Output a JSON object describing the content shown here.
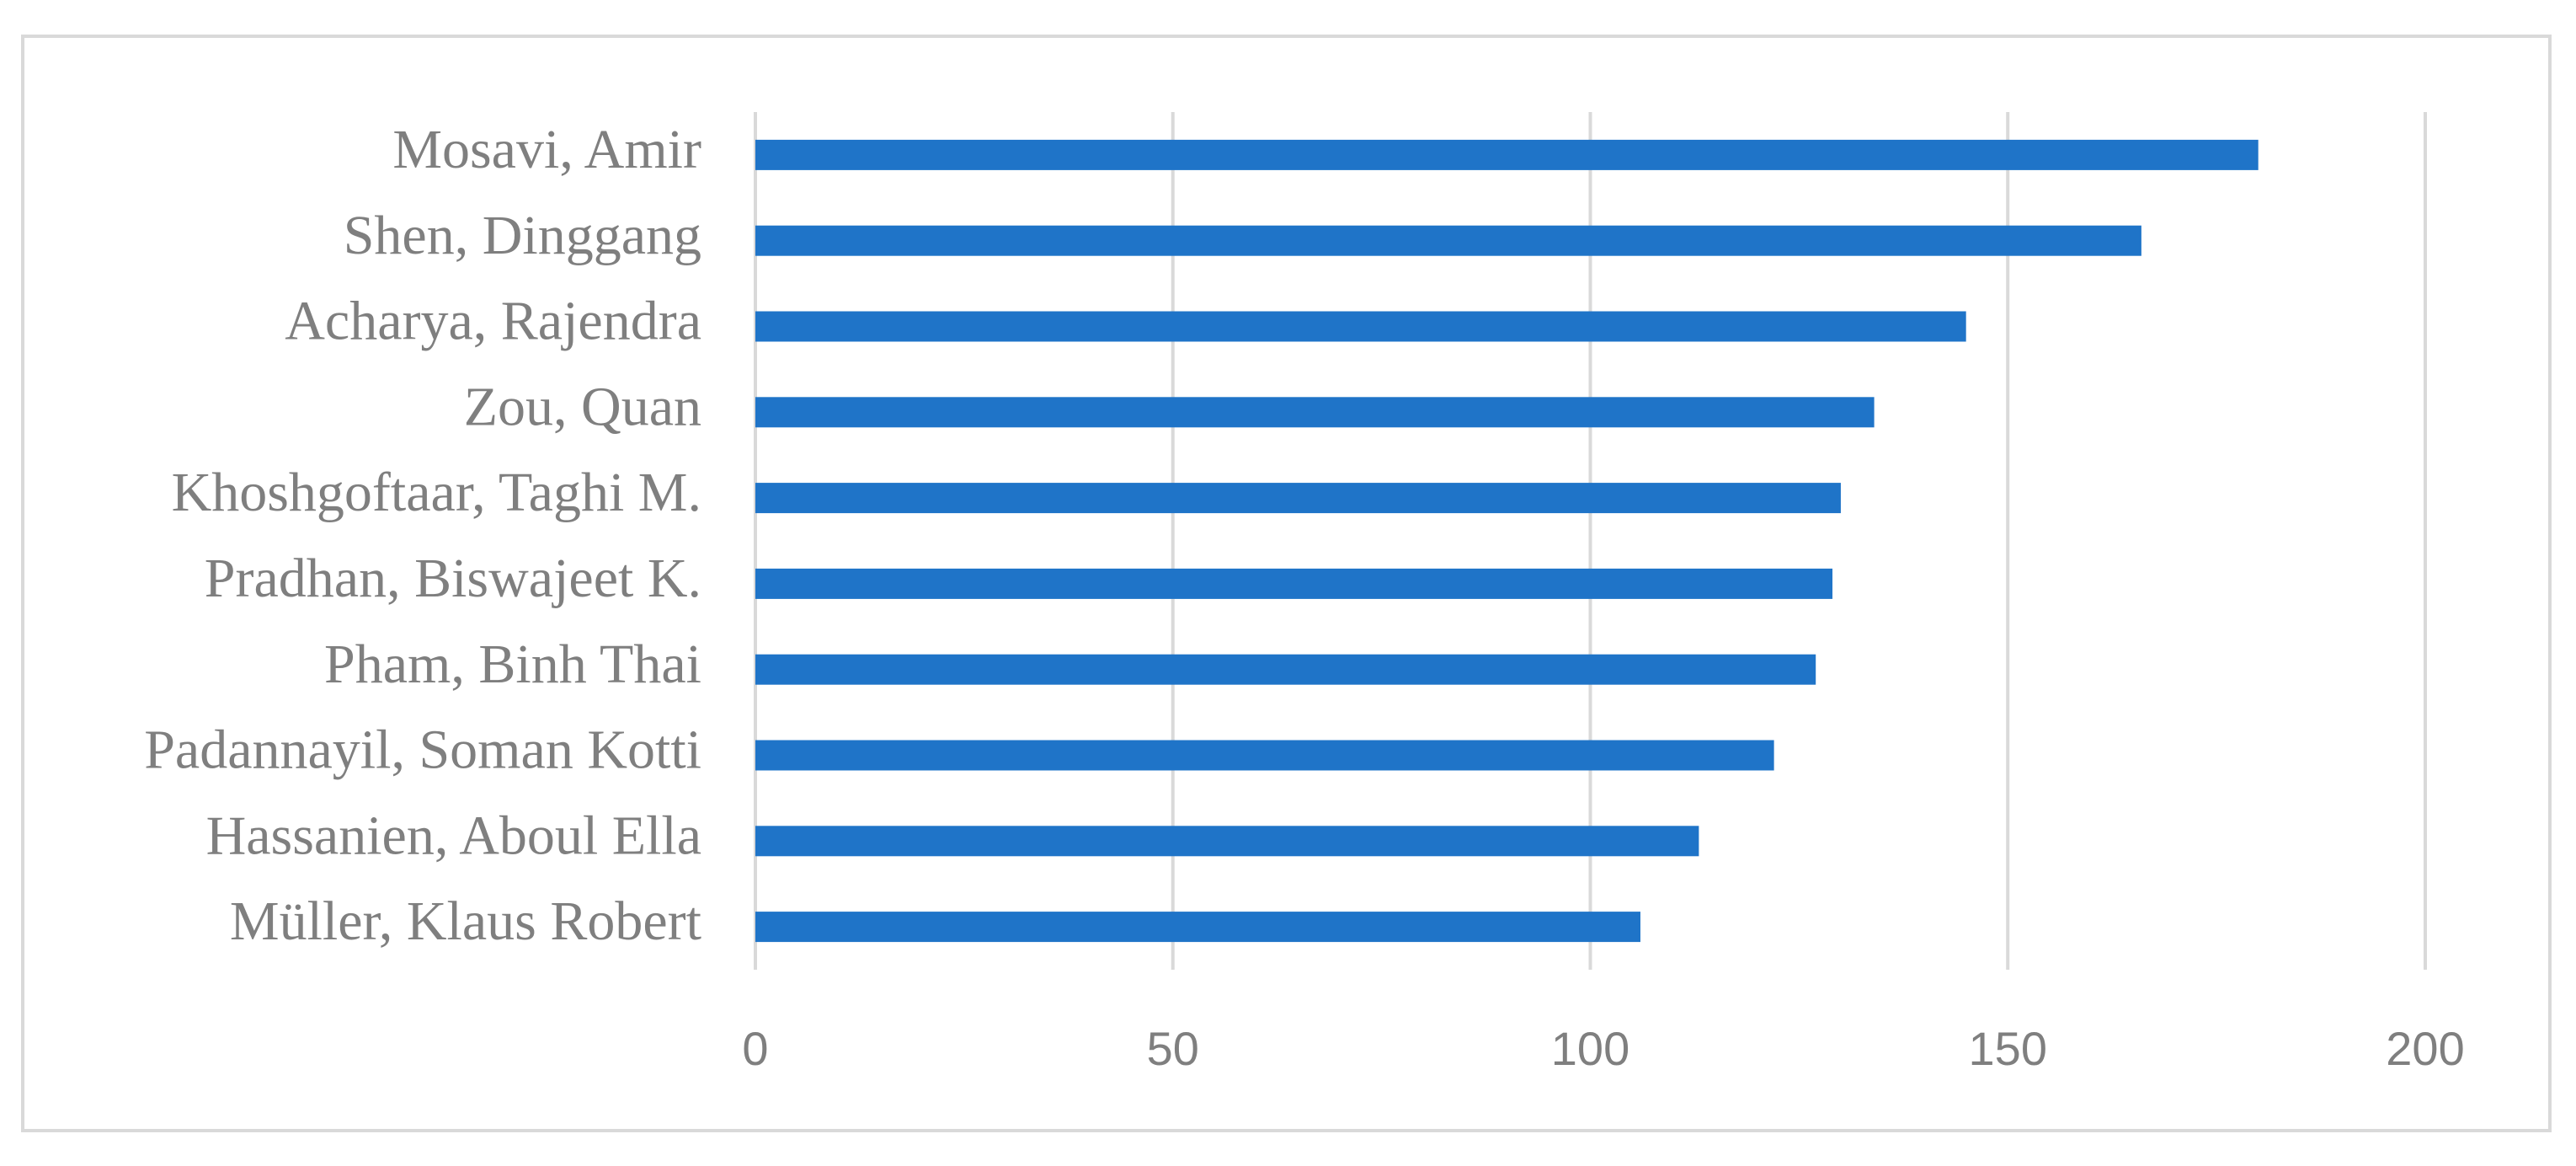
{
  "chart_data": {
    "type": "barh",
    "categories": [
      "Mosavi, Amir",
      "Shen, Dinggang",
      "Acharya, Rajendra",
      "Zou, Quan",
      "Khoshgoftaar, Taghi M.",
      "Pradhan, Biswajeet K.",
      "Pham, Binh Thai",
      "Padannayil, Soman Kotti",
      "Hassanien, Aboul Ella",
      "Müller, Klaus Robert"
    ],
    "values": [
      180,
      166,
      145,
      134,
      130,
      129,
      127,
      122,
      113,
      106
    ],
    "color": "#1f74c8",
    "xlim": [
      0,
      200
    ],
    "xticks": [
      0,
      50,
      100,
      150,
      200
    ],
    "grid": true
  }
}
